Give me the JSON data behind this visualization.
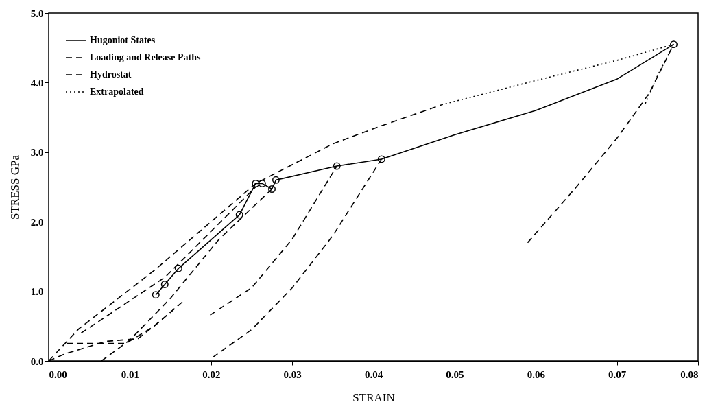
{
  "chart_data": {
    "type": "line",
    "xlabel": "STRAIN",
    "ylabel": "STRESS    GPa",
    "xlim": [
      0,
      0.08
    ],
    "ylim": [
      0,
      5.0
    ],
    "xticks": [
      {
        "value": 0,
        "label": "0.00"
      },
      {
        "value": 0.01,
        "label": "0.01"
      },
      {
        "value": 0.02,
        "label": "0.02"
      },
      {
        "value": 0.03,
        "label": "0.03"
      },
      {
        "value": 0.04,
        "label": "0.04"
      },
      {
        "value": 0.05,
        "label": "0.05"
      },
      {
        "value": 0.06,
        "label": "0.06"
      },
      {
        "value": 0.07,
        "label": "0.07"
      },
      {
        "value": 0.08,
        "label": "0.08"
      }
    ],
    "yticks": [
      {
        "value": 0,
        "label": "0.0"
      },
      {
        "value": 1,
        "label": "1.0"
      },
      {
        "value": 2,
        "label": "2.0"
      },
      {
        "value": 3,
        "label": "3.0"
      },
      {
        "value": 4,
        "label": "4.0"
      },
      {
        "value": 5,
        "label": "5.0"
      }
    ],
    "grid": false,
    "legend": "top left",
    "series": [
      {
        "name": "Hugoniot States",
        "color": "#000000",
        "line_style": "solid",
        "marker": "circle",
        "x": [
          0.0132,
          0.0143,
          0.016,
          0.0235,
          0.0255,
          0.0263,
          0.0275,
          0.028,
          0.0355,
          0.041
        ],
        "values": [
          0.95,
          1.1,
          1.33,
          2.1,
          2.55,
          2.55,
          2.47,
          2.6,
          2.8,
          2.9
        ]
      },
      {
        "type": "scatter",
        "color": "#000000",
        "marker": "circle",
        "x": [
          0.077
        ],
        "values": [
          4.55
        ]
      },
      {
        "color": "#000000",
        "line_style": "solid",
        "marker": "none",
        "x": [
          0.041,
          0.05,
          0.06,
          0.07,
          0.077
        ],
        "values": [
          2.9,
          3.25,
          3.6,
          4.05,
          4.55
        ]
      },
      {
        "name": "Loading and Release Paths",
        "color": "#000000",
        "line_style": "dashed",
        "marker": "none",
        "x": [
          0,
          0.0037,
          0.013,
          0.0255,
          0.035,
          0.041,
          0.0484
        ],
        "values": [
          0,
          0.46,
          1.3,
          2.55,
          3.12,
          3.38,
          3.68
        ]
      },
      {
        "color": "#000000",
        "line_style": "dashed",
        "marker": "none",
        "x": [
          0.004,
          0.0143,
          0.0255
        ],
        "values": [
          0.4,
          1.2,
          2.5
        ]
      },
      {
        "color": "#000000",
        "line_style": "dashed",
        "marker": "none",
        "x": [
          0.0199,
          0.025,
          0.03,
          0.0355
        ],
        "values": [
          0.66,
          1.05,
          1.75,
          2.8
        ]
      },
      {
        "color": "#000000",
        "line_style": "dashed",
        "marker": "none",
        "x": [
          0.0202,
          0.025,
          0.03,
          0.035,
          0.041
        ],
        "values": [
          0.05,
          0.45,
          1.05,
          1.8,
          2.9
        ]
      },
      {
        "color": "#000000",
        "line_style": "dashed",
        "marker": "none",
        "x": [
          0.059,
          0.065,
          0.07,
          0.074,
          0.077
        ],
        "values": [
          1.7,
          2.5,
          3.2,
          3.85,
          4.55
        ]
      },
      {
        "color": "#000000",
        "line_style": "dashed",
        "marker": "none",
        "x": [
          0.0065,
          0.01,
          0.015,
          0.021,
          0.0275
        ],
        "values": [
          0.0,
          0.3,
          0.9,
          1.75,
          2.47
        ]
      },
      {
        "color": "#000000",
        "line_style": "dashed",
        "marker": "none",
        "x": [
          0.0022,
          0.0095,
          0.013,
          0.016
        ],
        "values": [
          0.25,
          0.25,
          0.5,
          0.8
        ]
      },
      {
        "name": "Hydrostat",
        "color": "#000000",
        "line_style": "dashed",
        "marker": "none",
        "x": [
          0,
          0.002,
          0.007,
          0.011,
          0.0135,
          0.0165
        ],
        "values": [
          0,
          0.1,
          0.28,
          0.32,
          0.55,
          0.85
        ]
      },
      {
        "name": "Extrapolated",
        "color": "#000000",
        "line_style": "dotted",
        "marker": "none",
        "x": [
          0.0484,
          0.06,
          0.07,
          0.077
        ],
        "values": [
          3.68,
          4.03,
          4.32,
          4.55
        ]
      },
      {
        "color": "#000000",
        "line_style": "dotted",
        "marker": "none",
        "x": [
          0.0735,
          0.075,
          0.077
        ],
        "values": [
          3.7,
          4.1,
          4.55
        ]
      }
    ]
  }
}
